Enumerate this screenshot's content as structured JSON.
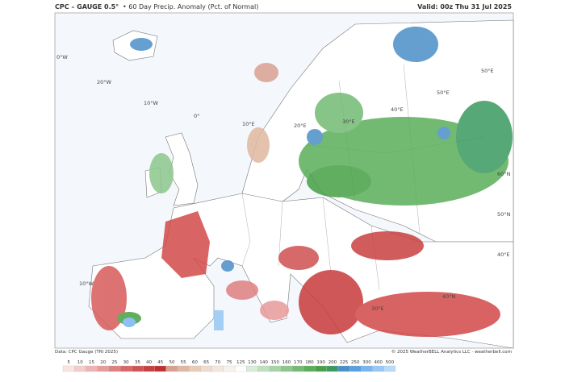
{
  "header": {
    "title": "CPC – GAUGE 0.5°",
    "subtitle": "• 60 Day Precip. Anomaly (Pct. of Normal)",
    "valid": "Valid: 00z Thu 31 Jul 2025"
  },
  "map_labels": [
    "0°W",
    "20°W",
    "10°W",
    "0°",
    "50°E",
    "40°E",
    "50°E",
    "20°E",
    "30°E",
    "10°E",
    "60°N",
    "50°N",
    "40°N",
    "30°E",
    "40°E",
    "10°W"
  ],
  "footer": {
    "source": "Data: CPC Gauge (TRI 2025)",
    "credit": "© 2025 WeatherBELL Analytics LLC · weatherbell.com"
  },
  "legend": {
    "labels": [
      "5",
      "10",
      "15",
      "20",
      "25",
      "30",
      "35",
      "40",
      "45",
      "50",
      "55",
      "60",
      "65",
      "70",
      "75",
      "125",
      "130",
      "140",
      "150",
      "160",
      "170",
      "180",
      "190",
      "200",
      "225",
      "250",
      "300",
      "400",
      "500"
    ],
    "colors": [
      "#f9e4e4",
      "#f5cccc",
      "#efb3b3",
      "#e89a9a",
      "#e08080",
      "#d86868",
      "#d05353",
      "#c84040",
      "#c03030",
      "#d8a090",
      "#e0b8a0",
      "#e8ccb8",
      "#efdccc",
      "#f3e8de",
      "#f8f2ec",
      "#ffffff",
      "#d8ecd8",
      "#bfe0bf",
      "#a6d4a6",
      "#8cc78c",
      "#73ba73",
      "#5aae5a",
      "#46a046",
      "#3a9a60",
      "#4a8fc8",
      "#5a9fe0",
      "#78b6f0",
      "#98c8f5",
      "#b8dbfa"
    ]
  }
}
